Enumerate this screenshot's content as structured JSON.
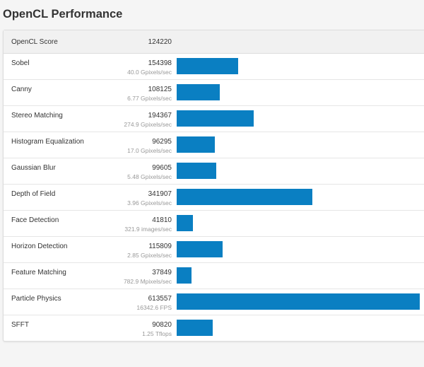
{
  "title": "OpenCL Performance",
  "score": {
    "label": "OpenCL Score",
    "value": "124220"
  },
  "bar_color": "#0a7fc2",
  "max_score": 613557,
  "rows": [
    {
      "name": "Sobel",
      "score": 154398,
      "detail": "40.0 Gpixels/sec"
    },
    {
      "name": "Canny",
      "score": 108125,
      "detail": "6.77 Gpixels/sec"
    },
    {
      "name": "Stereo Matching",
      "score": 194367,
      "detail": "274.9 Gpixels/sec"
    },
    {
      "name": "Histogram Equalization",
      "score": 96295,
      "detail": "17.0 Gpixels/sec"
    },
    {
      "name": "Gaussian Blur",
      "score": 99605,
      "detail": "5.48 Gpixels/sec"
    },
    {
      "name": "Depth of Field",
      "score": 341907,
      "detail": "3.96 Gpixels/sec"
    },
    {
      "name": "Face Detection",
      "score": 41810,
      "detail": "321.9 images/sec"
    },
    {
      "name": "Horizon Detection",
      "score": 115809,
      "detail": "2.85 Gpixels/sec"
    },
    {
      "name": "Feature Matching",
      "score": 37849,
      "detail": "782.9 Mpixels/sec"
    },
    {
      "name": "Particle Physics",
      "score": 613557,
      "detail": "16342.6 FPS"
    },
    {
      "name": "SFFT",
      "score": 90820,
      "detail": "1.25 Tflops"
    }
  ]
}
